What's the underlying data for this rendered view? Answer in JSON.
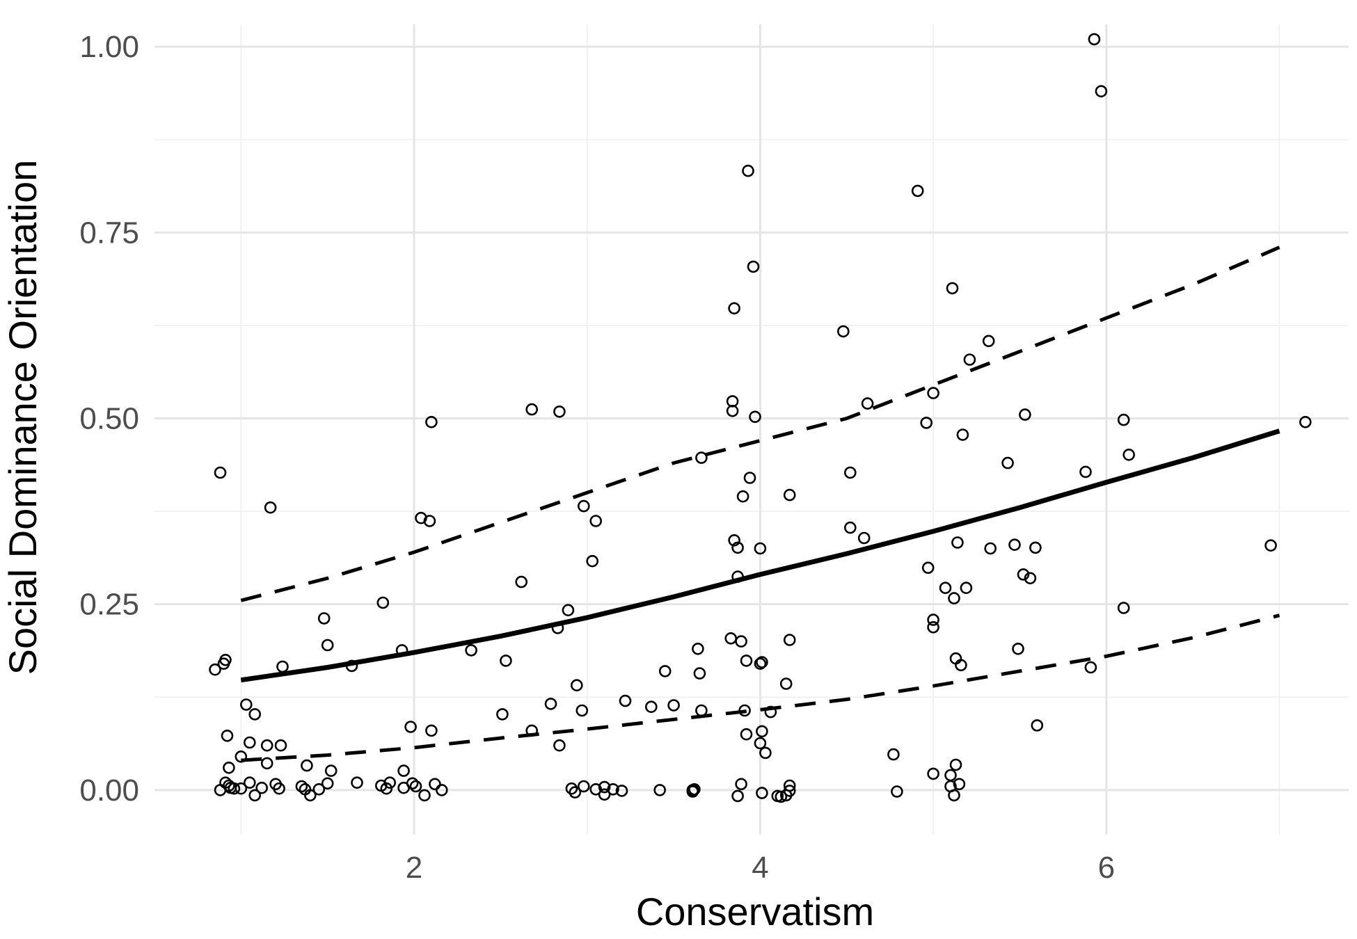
{
  "chart_data": {
    "type": "scatter",
    "title": "",
    "xlabel": "Conservatism",
    "ylabel": "Social Dominance Orientation",
    "xlim": [
      0.5,
      7.4
    ],
    "ylim": [
      -0.06,
      1.03
    ],
    "x_ticks": [
      2,
      4,
      6
    ],
    "x_tick_labels": [
      "2",
      "4",
      "6"
    ],
    "x_minor_gridlines": [
      1,
      3,
      5,
      7
    ],
    "y_ticks": [
      0,
      0.25,
      0.5,
      0.75,
      1.0
    ],
    "y_tick_labels": [
      "0.00",
      "0.25",
      "0.50",
      "0.75",
      "1.00"
    ],
    "y_minor_gridlines": [
      0.125,
      0.375,
      0.625,
      0.875
    ],
    "grid": true,
    "legend": "none",
    "point_style": "open circle",
    "fit": {
      "name": "fitted",
      "style": "solid",
      "x": [
        1.0,
        1.5,
        2.0,
        2.5,
        3.0,
        3.5,
        4.0,
        4.5,
        5.0,
        5.5,
        6.0,
        6.5,
        7.0
      ],
      "y": [
        0.148,
        0.165,
        0.185,
        0.207,
        0.232,
        0.26,
        0.29,
        0.318,
        0.348,
        0.38,
        0.414,
        0.447,
        0.483
      ]
    },
    "ci_upper": {
      "name": "upper",
      "style": "dashed",
      "x": [
        1.0,
        1.5,
        2.0,
        2.5,
        3.0,
        3.5,
        4.0,
        4.5,
        5.0,
        5.5,
        6.0,
        6.5,
        7.0
      ],
      "y": [
        0.255,
        0.285,
        0.32,
        0.36,
        0.4,
        0.44,
        0.47,
        0.5,
        0.545,
        0.59,
        0.635,
        0.68,
        0.73
      ]
    },
    "ci_lower": {
      "name": "lower",
      "style": "dashed",
      "x": [
        1.0,
        1.5,
        2.0,
        2.5,
        3.0,
        3.5,
        4.0,
        4.5,
        5.0,
        5.5,
        6.0,
        6.5,
        7.0
      ],
      "y": [
        0.04,
        0.047,
        0.057,
        0.07,
        0.082,
        0.095,
        0.108,
        0.122,
        0.14,
        0.16,
        0.18,
        0.205,
        0.235
      ]
    },
    "points": [
      [
        0.88,
        0.427
      ],
      [
        0.85,
        0.162
      ],
      [
        0.9,
        0.17
      ],
      [
        0.91,
        0.175
      ],
      [
        0.92,
        0.073
      ],
      [
        0.93,
        0.03
      ],
      [
        0.88,
        0.0
      ],
      [
        0.91,
        0.01
      ],
      [
        0.93,
        0.006
      ],
      [
        0.94,
        0.003
      ],
      [
        0.96,
        0.002
      ],
      [
        1.0,
        0.045
      ],
      [
        1.0,
        0.002
      ],
      [
        1.05,
        0.064
      ],
      [
        1.03,
        0.115
      ],
      [
        1.08,
        0.102
      ],
      [
        1.12,
        0.003
      ],
      [
        1.08,
        -0.007
      ],
      [
        1.15,
        0.06
      ],
      [
        1.15,
        0.036
      ],
      [
        1.17,
        0.38
      ],
      [
        1.2,
        0.008
      ],
      [
        1.22,
        0.002
      ],
      [
        1.23,
        0.06
      ],
      [
        1.24,
        0.166
      ],
      [
        1.05,
        0.01
      ],
      [
        1.35,
        0.005
      ],
      [
        1.37,
        0.001
      ],
      [
        1.4,
        -0.007
      ],
      [
        1.38,
        0.033
      ],
      [
        1.45,
        0.001
      ],
      [
        1.48,
        0.231
      ],
      [
        1.5,
        0.195
      ],
      [
        1.5,
        0.009
      ],
      [
        1.52,
        0.026
      ],
      [
        1.64,
        0.167
      ],
      [
        1.67,
        0.01
      ],
      [
        1.81,
        0.006
      ],
      [
        1.82,
        0.252
      ],
      [
        1.84,
        0.002
      ],
      [
        1.86,
        0.01
      ],
      [
        1.94,
        0.003
      ],
      [
        1.93,
        0.188
      ],
      [
        1.94,
        0.026
      ],
      [
        1.98,
        0.085
      ],
      [
        1.99,
        0.009
      ],
      [
        2.01,
        0.005
      ],
      [
        2.04,
        0.366
      ],
      [
        2.06,
        -0.007
      ],
      [
        2.09,
        0.362
      ],
      [
        2.1,
        0.495
      ],
      [
        2.1,
        0.08
      ],
      [
        2.12,
        0.008
      ],
      [
        2.16,
        0.0
      ],
      [
        2.33,
        0.188
      ],
      [
        2.51,
        0.102
      ],
      [
        2.53,
        0.174
      ],
      [
        2.62,
        0.28
      ],
      [
        2.68,
        0.512
      ],
      [
        2.68,
        0.08
      ],
      [
        2.79,
        0.116
      ],
      [
        2.84,
        0.509
      ],
      [
        2.83,
        0.218
      ],
      [
        2.84,
        0.06
      ],
      [
        2.89,
        0.242
      ],
      [
        2.91,
        0.002
      ],
      [
        2.93,
        -0.003
      ],
      [
        2.94,
        0.141
      ],
      [
        2.97,
        0.107
      ],
      [
        2.98,
        0.382
      ],
      [
        2.98,
        0.005
      ],
      [
        3.03,
        0.308
      ],
      [
        3.05,
        0.362
      ],
      [
        3.05,
        0.001
      ],
      [
        3.1,
        0.004
      ],
      [
        3.1,
        -0.006
      ],
      [
        3.15,
        0.001
      ],
      [
        3.2,
        -0.001
      ],
      [
        3.22,
        0.12
      ],
      [
        3.37,
        0.112
      ],
      [
        3.42,
        0.0
      ],
      [
        3.45,
        0.16
      ],
      [
        3.5,
        0.114
      ],
      [
        3.61,
        0.0
      ],
      [
        3.61,
        -0.002
      ],
      [
        3.62,
        0.001
      ],
      [
        3.64,
        0.19
      ],
      [
        3.65,
        0.157
      ],
      [
        3.66,
        0.107
      ],
      [
        3.66,
        0.447
      ],
      [
        3.83,
        0.204
      ],
      [
        3.84,
        0.523
      ],
      [
        3.84,
        0.51
      ],
      [
        3.85,
        0.648
      ],
      [
        3.85,
        0.336
      ],
      [
        3.87,
        0.326
      ],
      [
        3.87,
        0.287
      ],
      [
        3.89,
        0.2
      ],
      [
        3.89,
        0.008
      ],
      [
        3.87,
        -0.008
      ],
      [
        3.9,
        0.395
      ],
      [
        3.91,
        0.107
      ],
      [
        3.92,
        0.075
      ],
      [
        3.92,
        0.174
      ],
      [
        3.93,
        0.833
      ],
      [
        3.94,
        0.42
      ],
      [
        3.96,
        0.704
      ],
      [
        3.97,
        0.502
      ],
      [
        4.0,
        0.17
      ],
      [
        4.01,
        0.172
      ],
      [
        4.0,
        0.063
      ],
      [
        4.01,
        0.079
      ],
      [
        4.0,
        0.325
      ],
      [
        4.03,
        0.05
      ],
      [
        4.01,
        -0.004
      ],
      [
        4.06,
        0.105
      ],
      [
        4.1,
        -0.008
      ],
      [
        4.12,
        -0.009
      ],
      [
        4.15,
        0.143
      ],
      [
        4.15,
        -0.007
      ],
      [
        4.17,
        0.006
      ],
      [
        4.17,
        0.202
      ],
      [
        4.17,
        -0.001
      ],
      [
        4.17,
        0.397
      ],
      [
        4.48,
        0.617
      ],
      [
        4.52,
        0.427
      ],
      [
        4.52,
        0.353
      ],
      [
        4.6,
        0.339
      ],
      [
        4.62,
        0.52
      ],
      [
        4.77,
        0.048
      ],
      [
        4.79,
        -0.002
      ],
      [
        4.91,
        0.806
      ],
      [
        4.96,
        0.494
      ],
      [
        4.97,
        0.299
      ],
      [
        5.0,
        0.229
      ],
      [
        5.0,
        0.219
      ],
      [
        5.0,
        0.534
      ],
      [
        5.0,
        0.022
      ],
      [
        5.07,
        0.272
      ],
      [
        5.11,
        0.675
      ],
      [
        5.12,
        0.258
      ],
      [
        5.13,
        0.177
      ],
      [
        5.14,
        0.333
      ],
      [
        5.16,
        0.168
      ],
      [
        5.17,
        0.478
      ],
      [
        5.19,
        0.272
      ],
      [
        5.21,
        0.579
      ],
      [
        5.1,
        0.005
      ],
      [
        5.1,
        0.02
      ],
      [
        5.12,
        -0.007
      ],
      [
        5.13,
        0.034
      ],
      [
        5.15,
        0.008
      ],
      [
        5.32,
        0.604
      ],
      [
        5.33,
        0.325
      ],
      [
        5.43,
        0.44
      ],
      [
        5.47,
        0.33
      ],
      [
        5.49,
        0.19
      ],
      [
        5.52,
        0.29
      ],
      [
        5.53,
        0.505
      ],
      [
        5.56,
        0.285
      ],
      [
        5.59,
        0.326
      ],
      [
        5.6,
        0.087
      ],
      [
        5.88,
        0.428
      ],
      [
        5.91,
        0.165
      ],
      [
        5.93,
        1.01
      ],
      [
        5.97,
        0.94
      ],
      [
        6.1,
        0.498
      ],
      [
        6.1,
        0.245
      ],
      [
        6.13,
        0.451
      ],
      [
        6.95,
        0.329
      ],
      [
        7.15,
        0.495
      ]
    ]
  }
}
